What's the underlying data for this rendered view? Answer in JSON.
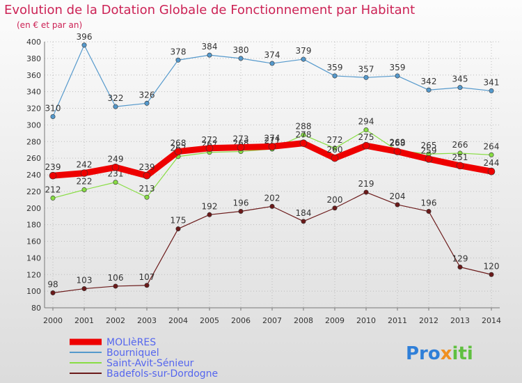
{
  "chart_data": {
    "type": "line",
    "title": "Evolution de la Dotation Globale de Fonctionnement par Habitant",
    "subtitle": "(en € et par an)",
    "x": [
      2000,
      2001,
      2002,
      2003,
      2004,
      2005,
      2006,
      2007,
      2008,
      2009,
      2010,
      2011,
      2012,
      2013,
      2014
    ],
    "xlabels": [
      "2000",
      "2001",
      "2002",
      "2003",
      "2004",
      "2005",
      "2006",
      "2007",
      "2008",
      "2009",
      "2010",
      "2011",
      "2012",
      "2013",
      "2014"
    ],
    "ylim": [
      80,
      400
    ],
    "yticks": [
      80,
      100,
      120,
      140,
      160,
      180,
      200,
      220,
      240,
      260,
      280,
      300,
      320,
      340,
      360,
      380,
      400
    ],
    "ytick_labels": [
      "80",
      "100",
      "120",
      "140",
      "160",
      "180",
      "200",
      "220",
      "240",
      "260",
      "280",
      "300",
      "320",
      "340",
      "360",
      "380",
      "400"
    ],
    "grid": true,
    "legend": "bottom-left",
    "series": [
      {
        "name": "Bourniquel",
        "color": "#5599cc",
        "values": [
          310,
          396,
          322,
          326,
          378,
          384,
          380,
          374,
          379,
          359,
          357,
          359,
          342,
          345,
          341
        ],
        "labels": [
          "310",
          "396",
          "322",
          "326",
          "378",
          "384",
          "380",
          "374",
          "379",
          "359",
          "357",
          "359",
          "342",
          "345",
          "341"
        ]
      },
      {
        "name": "Saint-Avit-Sénieur",
        "color": "#88dd44",
        "values": [
          212,
          222,
          231,
          213,
          262,
          267,
          268,
          271,
          288,
          272,
          294,
          269,
          265,
          266,
          264
        ],
        "labels": [
          "212",
          "222",
          "231",
          "213",
          "262",
          "267",
          "268",
          "271",
          "288",
          "272",
          "294",
          "269",
          "265",
          "266",
          "264"
        ]
      },
      {
        "name": "Badefols-sur-Dordogne",
        "color": "#6b1a1a",
        "values": [
          98,
          103,
          106,
          107,
          175,
          192,
          196,
          202,
          184,
          200,
          219,
          204,
          196,
          129,
          120
        ],
        "labels": [
          "98",
          "103",
          "106",
          "107",
          "175",
          "192",
          "196",
          "202",
          "184",
          "200",
          "219",
          "204",
          "196",
          "129",
          "120"
        ]
      },
      {
        "name": "MOLIèRES",
        "color": "#ee0000",
        "values": [
          239,
          242,
          249,
          239,
          268,
          272,
          273,
          274,
          278,
          260,
          275,
          268,
          259,
          251,
          244
        ],
        "labels": [
          "239",
          "242",
          "249",
          "239",
          "268",
          "272",
          "273",
          "274",
          "278",
          "260",
          "275",
          "268",
          "259",
          "251",
          "244"
        ]
      }
    ],
    "legend_entries": [
      "MOLIèRES",
      "Bourniquel",
      "Saint-Avit-Sénieur",
      "Badefols-sur-Dordogne"
    ]
  },
  "brand": {
    "part1": "Pro",
    "part2": "x",
    "part3": "iti"
  },
  "colors": {
    "title": "#cc2255",
    "subtitle": "#cc2255",
    "legend_text": "#5566ee",
    "grid": "#bbbbbb"
  }
}
